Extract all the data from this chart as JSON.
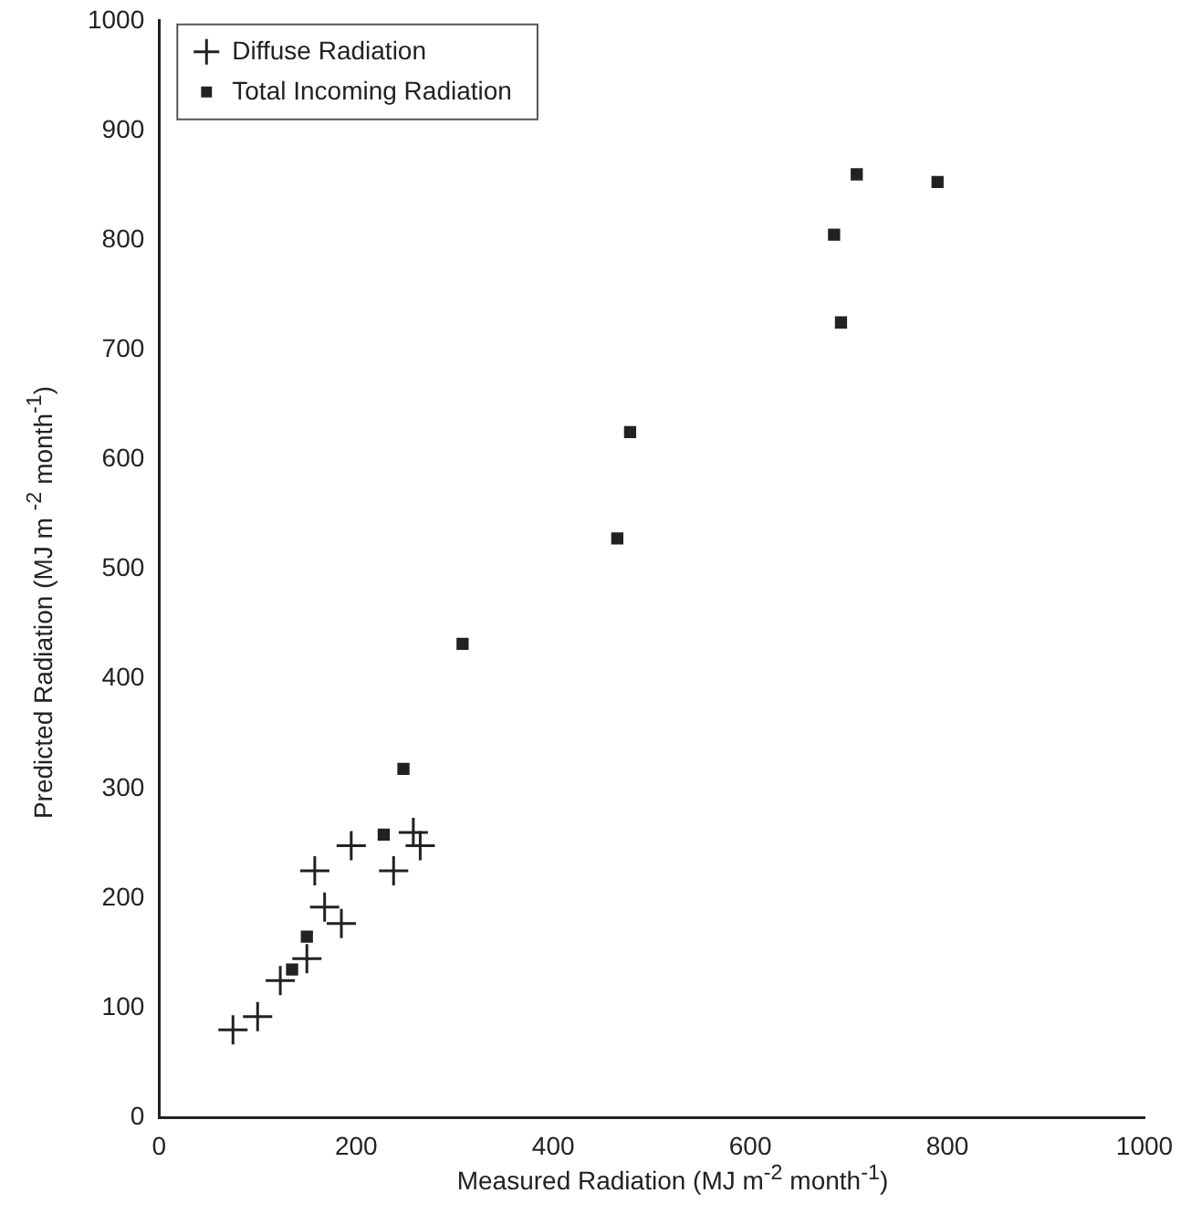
{
  "chart_data": {
    "type": "scatter",
    "xlabel": "Measured Radiation (MJ m$^{-2}$ month$^{-1}$)",
    "ylabel": "Predicted Radiation (MJ m $^{-2}$ month$^{-1}$)",
    "xlim": [
      0,
      1000
    ],
    "xticks": [
      0,
      200,
      400,
      600,
      800,
      1000
    ],
    "ylim": [
      0,
      1000
    ],
    "yticks": [
      0,
      100,
      200,
      300,
      400,
      500,
      600,
      700,
      800,
      900,
      1000
    ],
    "grid": false,
    "legend": "top left",
    "series": [
      {
        "name": "Diffuse Radiation",
        "color": "#222222",
        "marker": "cross",
        "x": [
          75,
          100,
          123,
          150,
          158,
          168,
          185,
          195,
          238,
          258,
          265
        ],
        "values": [
          80,
          92,
          125,
          145,
          225,
          192,
          177,
          248,
          225,
          260,
          248
        ]
      },
      {
        "name": "Total Incoming Radiation",
        "color": "#222222",
        "marker": "square",
        "x": [
          135,
          150,
          228,
          248,
          308,
          465,
          478,
          685,
          692,
          708,
          790
        ],
        "values": [
          135,
          165,
          258,
          318,
          432,
          528,
          625,
          805,
          725,
          860,
          853
        ]
      }
    ]
  }
}
